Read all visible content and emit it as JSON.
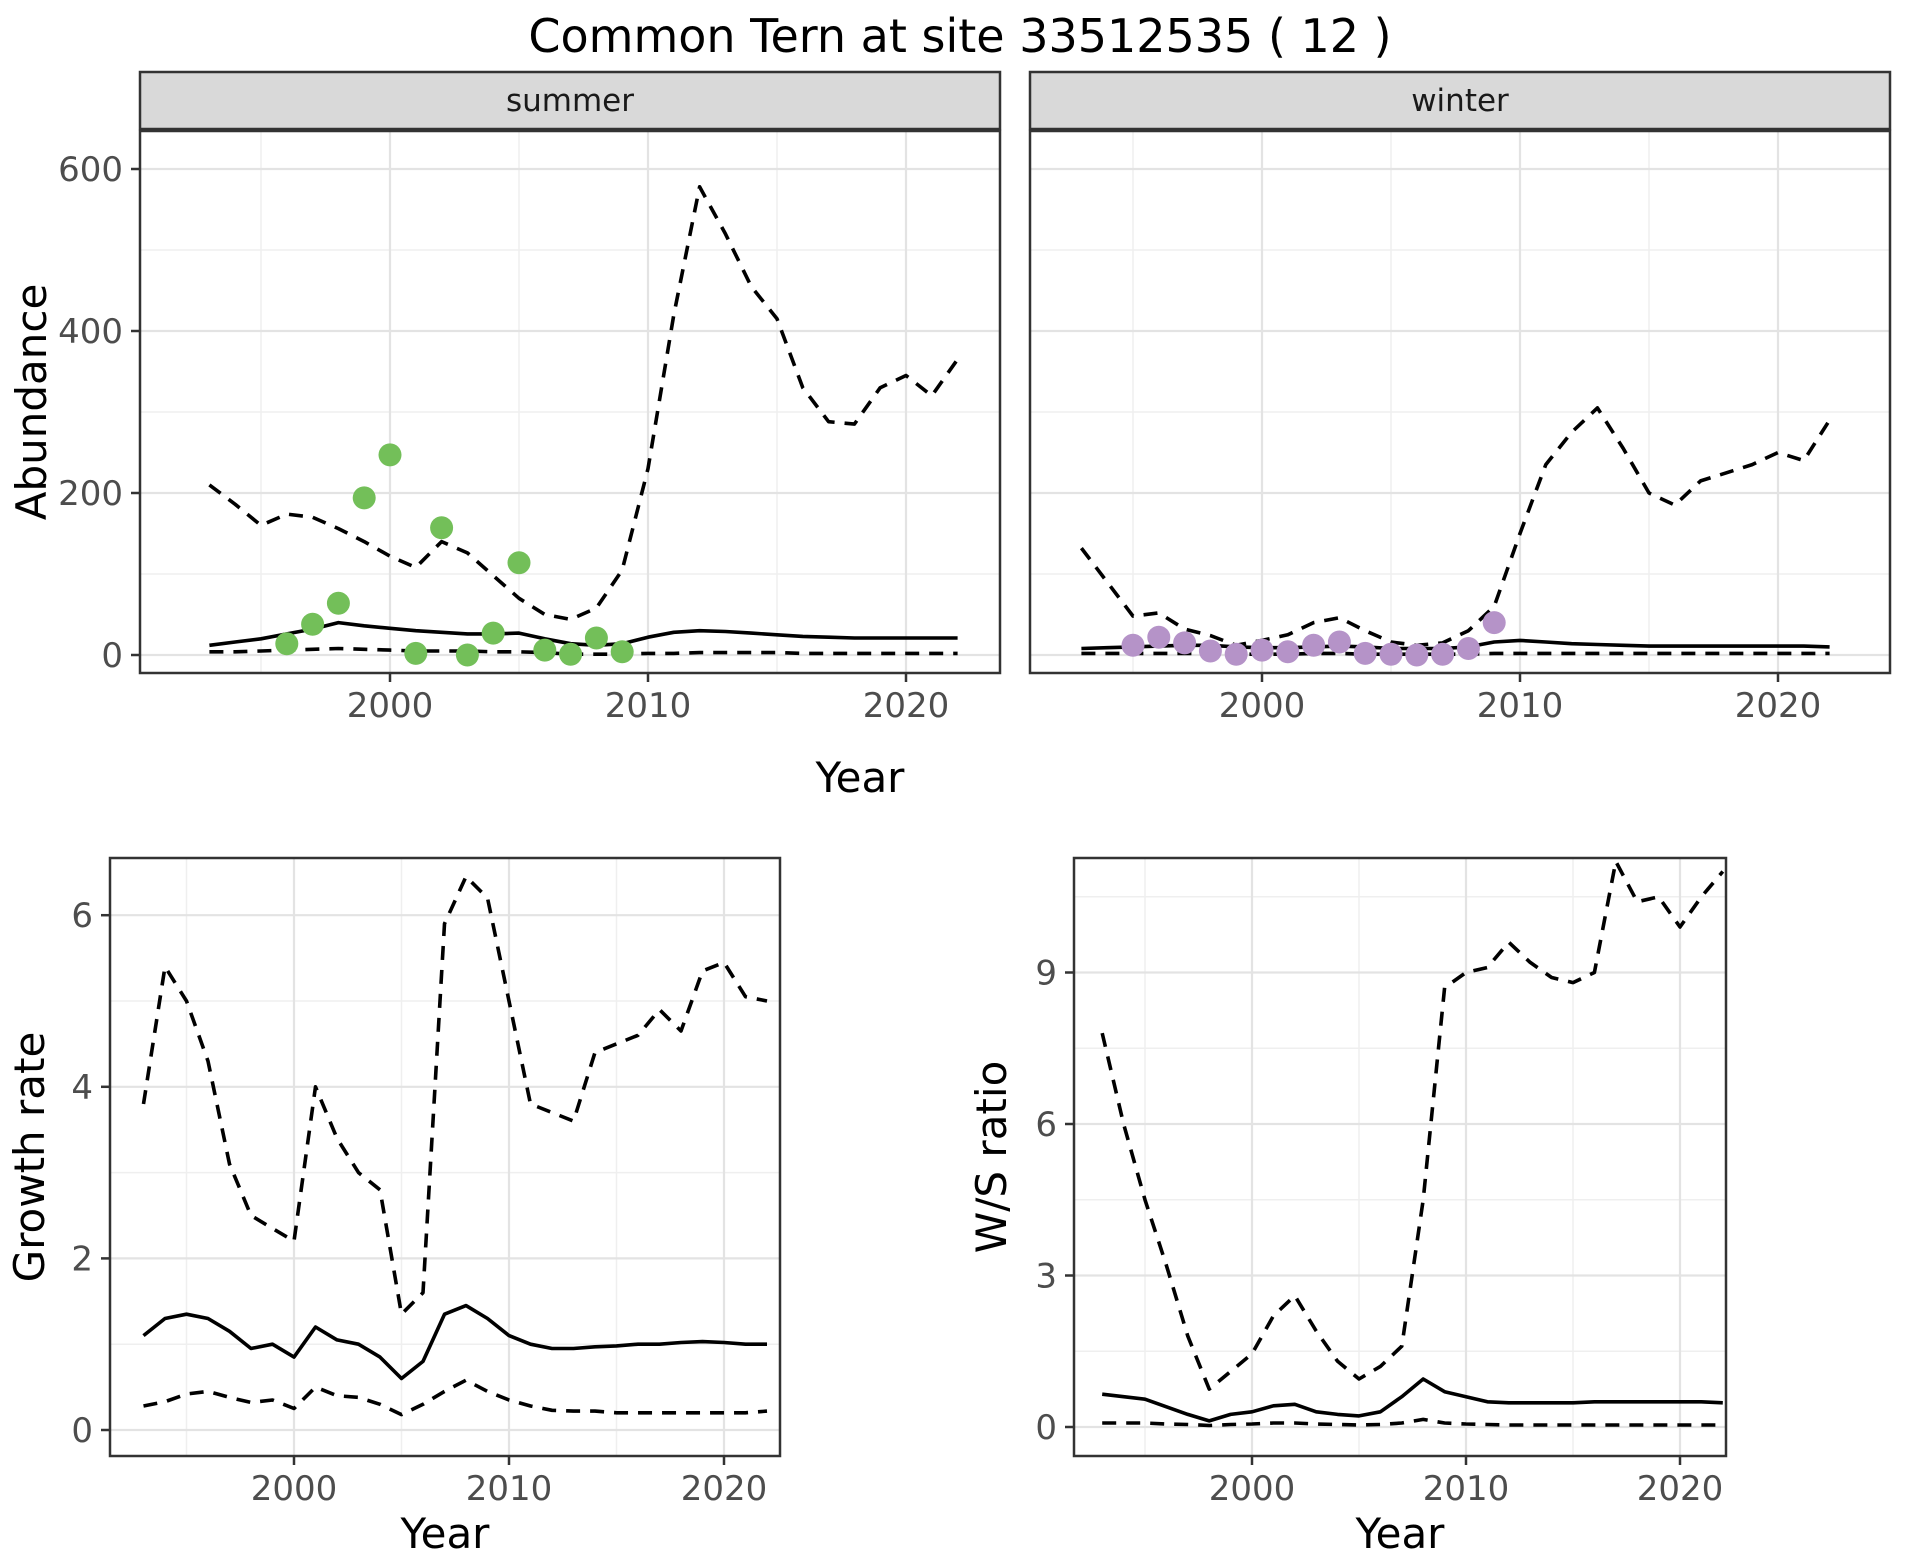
{
  "title": "Common Tern at site 33512535 ( 12 )",
  "facets": {
    "summer": "summer",
    "winter": "winter"
  },
  "axes": {
    "x_label": "Year",
    "abundance_label": "Abundance",
    "growth_label": "Growth rate",
    "ws_label": "W/S ratio"
  },
  "colors": {
    "summer_points": "#73bf59",
    "winter_points": "#b593c8",
    "line": "#000000",
    "panel_border": "#333333",
    "strip_fill": "#d9d9d9",
    "grid_major": "#e3e3e3",
    "grid_minor": "#efefef",
    "tick_text": "#4d4d4d"
  },
  "chart_data": [
    {
      "id": "abundance_summer",
      "type": "line",
      "facet": "summer",
      "xlabel": "Year",
      "ylabel": "Abundance",
      "ylim": [
        0,
        600
      ],
      "yticks": [
        0,
        200,
        400,
        600
      ],
      "y_tick_labels": [
        "0",
        "200",
        "400",
        "600"
      ],
      "xticks": [
        2000,
        2010,
        2020
      ],
      "x_tick_labels": [
        "2000",
        "2010",
        "2020"
      ],
      "years": [
        1993,
        1994,
        1995,
        1996,
        1997,
        1998,
        1999,
        2000,
        2001,
        2002,
        2003,
        2004,
        2005,
        2006,
        2007,
        2008,
        2009,
        2010,
        2011,
        2012,
        2013,
        2014,
        2015,
        2016,
        2017,
        2018,
        2019,
        2020,
        2021,
        2022
      ],
      "series": [
        {
          "name": "ci-upper",
          "style": "dashed",
          "values": [
            210,
            186,
            160,
            174,
            170,
            156,
            140,
            122,
            108,
            140,
            126,
            98,
            70,
            50,
            44,
            58,
            105,
            230,
            420,
            578,
            520,
            455,
            415,
            330,
            288,
            285,
            330,
            345,
            320,
            365
          ]
        },
        {
          "name": "median",
          "style": "solid",
          "values": [
            12,
            16,
            20,
            26,
            32,
            40,
            36,
            33,
            30,
            28,
            26,
            26,
            27,
            20,
            14,
            12,
            14,
            22,
            28,
            30,
            29,
            27,
            25,
            23,
            22,
            21,
            21,
            21,
            21,
            21
          ]
        },
        {
          "name": "ci-lower",
          "style": "dashed",
          "values": [
            4,
            4,
            5,
            6,
            7,
            8,
            7,
            6,
            5,
            5,
            5,
            4,
            4,
            3,
            1,
            1,
            1,
            2,
            2,
            3,
            3,
            3,
            3,
            2,
            2,
            2,
            2,
            2,
            2,
            2
          ]
        }
      ],
      "observations": {
        "name": "summer-counts",
        "color": "#73bf59",
        "points": [
          [
            1996,
            14
          ],
          [
            1997,
            38
          ],
          [
            1998,
            64
          ],
          [
            1999,
            194
          ],
          [
            2000,
            247
          ],
          [
            2001,
            2
          ],
          [
            2002,
            157
          ],
          [
            2003,
            0
          ],
          [
            2004,
            27
          ],
          [
            2005,
            114
          ],
          [
            2006,
            6
          ],
          [
            2007,
            1
          ],
          [
            2008,
            21
          ],
          [
            2009,
            4
          ]
        ]
      }
    },
    {
      "id": "abundance_winter",
      "type": "line",
      "facet": "winter",
      "xlabel": "Year",
      "ylabel": "Abundance",
      "ylim": [
        0,
        600
      ],
      "yticks": [
        0,
        200,
        400,
        600
      ],
      "y_tick_labels": [
        "0",
        "200",
        "400",
        "600"
      ],
      "xticks": [
        2000,
        2010,
        2020
      ],
      "x_tick_labels": [
        "2000",
        "2010",
        "2020"
      ],
      "years": [
        1993,
        1994,
        1995,
        1996,
        1997,
        1998,
        1999,
        2000,
        2001,
        2002,
        2003,
        2004,
        2005,
        2006,
        2007,
        2008,
        2009,
        2010,
        2011,
        2012,
        2013,
        2014,
        2015,
        2016,
        2017,
        2018,
        2019,
        2020,
        2021,
        2022
      ],
      "series": [
        {
          "name": "ci-upper",
          "style": "dashed",
          "values": [
            132,
            90,
            48,
            52,
            32,
            24,
            12,
            18,
            25,
            40,
            46,
            30,
            16,
            12,
            15,
            30,
            60,
            150,
            235,
            275,
            305,
            255,
            200,
            185,
            215,
            225,
            235,
            250,
            240,
            290
          ]
        },
        {
          "name": "median",
          "style": "solid",
          "values": [
            8,
            9,
            10,
            11,
            12,
            12,
            10,
            9,
            9,
            10,
            11,
            10,
            8,
            8,
            8,
            10,
            16,
            18,
            16,
            14,
            13,
            12,
            11,
            11,
            11,
            11,
            11,
            11,
            11,
            10
          ]
        },
        {
          "name": "ci-lower",
          "style": "dashed",
          "values": [
            2,
            2,
            2,
            2,
            2,
            2,
            1,
            1,
            1,
            2,
            2,
            1,
            1,
            1,
            1,
            1,
            2,
            2,
            2,
            2,
            2,
            2,
            2,
            2,
            2,
            2,
            2,
            2,
            2,
            2
          ]
        }
      ],
      "observations": {
        "name": "winter-counts",
        "color": "#b593c8",
        "points": [
          [
            1995,
            12
          ],
          [
            1996,
            22
          ],
          [
            1997,
            15
          ],
          [
            1998,
            5
          ],
          [
            1999,
            1
          ],
          [
            2000,
            6
          ],
          [
            2001,
            4
          ],
          [
            2002,
            12
          ],
          [
            2003,
            16
          ],
          [
            2004,
            2
          ],
          [
            2005,
            1
          ],
          [
            2006,
            0
          ],
          [
            2007,
            1
          ],
          [
            2008,
            8
          ],
          [
            2009,
            40
          ]
        ]
      }
    },
    {
      "id": "growth_rate",
      "type": "line",
      "facet": null,
      "xlabel": "Year",
      "ylabel": "Growth rate",
      "ylim": [
        0,
        6.5
      ],
      "yticks": [
        0,
        2,
        4,
        6
      ],
      "y_tick_labels": [
        "0",
        "2",
        "4",
        "6"
      ],
      "xticks": [
        2000,
        2010,
        2020
      ],
      "x_tick_labels": [
        "2000",
        "2010",
        "2020"
      ],
      "years": [
        1993,
        1994,
        1995,
        1996,
        1997,
        1998,
        1999,
        2000,
        2001,
        2002,
        2003,
        2004,
        2005,
        2006,
        2007,
        2008,
        2009,
        2010,
        2011,
        2012,
        2013,
        2014,
        2015,
        2016,
        2017,
        2018,
        2019,
        2020,
        2021,
        2022
      ],
      "series": [
        {
          "name": "ci-upper",
          "style": "dashed",
          "values": [
            3.8,
            5.4,
            5.0,
            4.3,
            3.1,
            2.5,
            2.35,
            2.2,
            4.0,
            3.4,
            3.0,
            2.8,
            1.35,
            1.6,
            5.9,
            6.45,
            6.2,
            5.0,
            3.8,
            3.7,
            3.6,
            4.4,
            4.5,
            4.6,
            4.9,
            4.65,
            5.35,
            5.45,
            5.05,
            5.0
          ]
        },
        {
          "name": "median",
          "style": "solid",
          "values": [
            1.1,
            1.3,
            1.35,
            1.3,
            1.15,
            0.95,
            1.0,
            0.85,
            1.2,
            1.05,
            1.0,
            0.85,
            0.6,
            0.8,
            1.35,
            1.45,
            1.3,
            1.1,
            1.0,
            0.95,
            0.95,
            0.97,
            0.98,
            1.0,
            1.0,
            1.02,
            1.03,
            1.02,
            1.0,
            1.0
          ]
        },
        {
          "name": "ci-lower",
          "style": "dashed",
          "values": [
            0.28,
            0.33,
            0.42,
            0.45,
            0.38,
            0.32,
            0.35,
            0.25,
            0.5,
            0.4,
            0.38,
            0.3,
            0.18,
            0.3,
            0.45,
            0.58,
            0.45,
            0.35,
            0.28,
            0.23,
            0.22,
            0.22,
            0.2,
            0.2,
            0.2,
            0.2,
            0.2,
            0.2,
            0.2,
            0.22
          ]
        }
      ],
      "observations": null
    },
    {
      "id": "ws_ratio",
      "type": "line",
      "facet": null,
      "xlabel": "Year",
      "ylabel": "W/S ratio",
      "ylim": [
        0,
        11.2
      ],
      "yticks": [
        0,
        3,
        6,
        9
      ],
      "y_tick_labels": [
        "0",
        "3",
        "6",
        "9"
      ],
      "xticks": [
        2000,
        2010,
        2020
      ],
      "x_tick_labels": [
        "2000",
        "2010",
        "2020"
      ],
      "years": [
        1993,
        1994,
        1995,
        1996,
        1997,
        1998,
        1999,
        2000,
        2001,
        2002,
        2003,
        2004,
        2005,
        2006,
        2007,
        2008,
        2009,
        2010,
        2011,
        2012,
        2013,
        2014,
        2015,
        2016,
        2017,
        2018,
        2019,
        2020,
        2021,
        2022
      ],
      "series": [
        {
          "name": "ci-upper",
          "style": "dashed",
          "values": [
            7.8,
            6.0,
            4.5,
            3.2,
            1.8,
            0.75,
            1.1,
            1.45,
            2.2,
            2.6,
            1.9,
            1.3,
            0.95,
            1.2,
            1.6,
            4.5,
            8.7,
            9.0,
            9.1,
            9.6,
            9.2,
            8.9,
            8.8,
            9.0,
            11.2,
            10.4,
            10.5,
            9.9,
            10.5,
            11.0
          ]
        },
        {
          "name": "median",
          "style": "solid",
          "values": [
            0.65,
            0.6,
            0.55,
            0.4,
            0.25,
            0.12,
            0.25,
            0.3,
            0.42,
            0.45,
            0.3,
            0.25,
            0.22,
            0.3,
            0.6,
            0.95,
            0.7,
            0.6,
            0.5,
            0.48,
            0.48,
            0.48,
            0.48,
            0.5,
            0.5,
            0.5,
            0.5,
            0.5,
            0.5,
            0.48
          ]
        },
        {
          "name": "ci-lower",
          "style": "dashed",
          "values": [
            0.08,
            0.08,
            0.08,
            0.06,
            0.05,
            0.03,
            0.05,
            0.06,
            0.08,
            0.08,
            0.06,
            0.05,
            0.04,
            0.05,
            0.08,
            0.15,
            0.08,
            0.06,
            0.05,
            0.04,
            0.04,
            0.04,
            0.04,
            0.04,
            0.04,
            0.04,
            0.04,
            0.04,
            0.04,
            0.04
          ]
        }
      ],
      "observations": null
    }
  ]
}
